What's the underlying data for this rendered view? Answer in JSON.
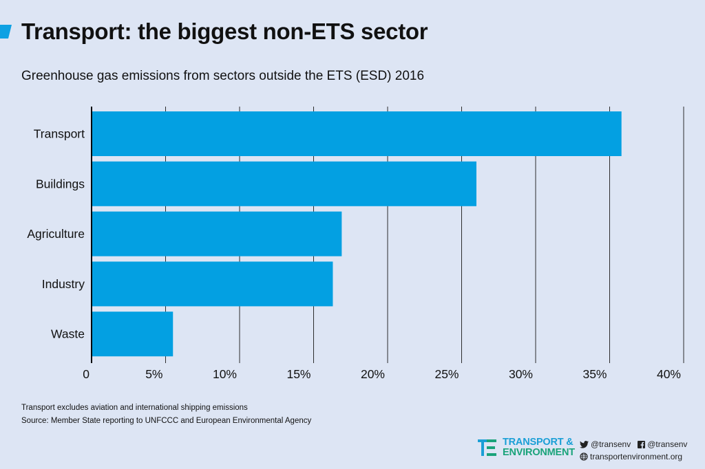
{
  "header": {
    "title": "Transport: the biggest non-ETS sector",
    "subtitle": "Greenhouse gas emissions from sectors outside the ETS (ESD) 2016"
  },
  "colors": {
    "background": "#dde5f4",
    "bar": "#03a0e2",
    "gridline": "#2b2b2b",
    "brand_blue": "#1a9fd6",
    "brand_green": "#1aa37a"
  },
  "chart_data": {
    "type": "bar",
    "orientation": "horizontal",
    "categories": [
      "Transport",
      "Buildings",
      "Agriculture",
      "Industry",
      "Waste"
    ],
    "values": [
      35.8,
      26,
      16.9,
      16.3,
      5.5
    ],
    "unit": "%",
    "xlim": [
      0,
      40
    ],
    "xticks": [
      0,
      5,
      10,
      15,
      20,
      25,
      30,
      35,
      40
    ],
    "xtick_labels": [
      "0",
      "5%",
      "10%",
      "15%",
      "20%",
      "25%",
      "30%",
      "35%",
      "40%"
    ],
    "grid": "vertical",
    "legend": "none"
  },
  "footer": {
    "note": "Transport excludes aviation and international shipping emissions",
    "source": "Source: Member State reporting to UNFCCC and European Environmental Agency"
  },
  "branding": {
    "logo_line1": "TRANSPORT &",
    "logo_line2": "ENVIRONMENT",
    "twitter": "@transenv",
    "facebook": "@transenv",
    "website": "transportenvironment.org"
  }
}
